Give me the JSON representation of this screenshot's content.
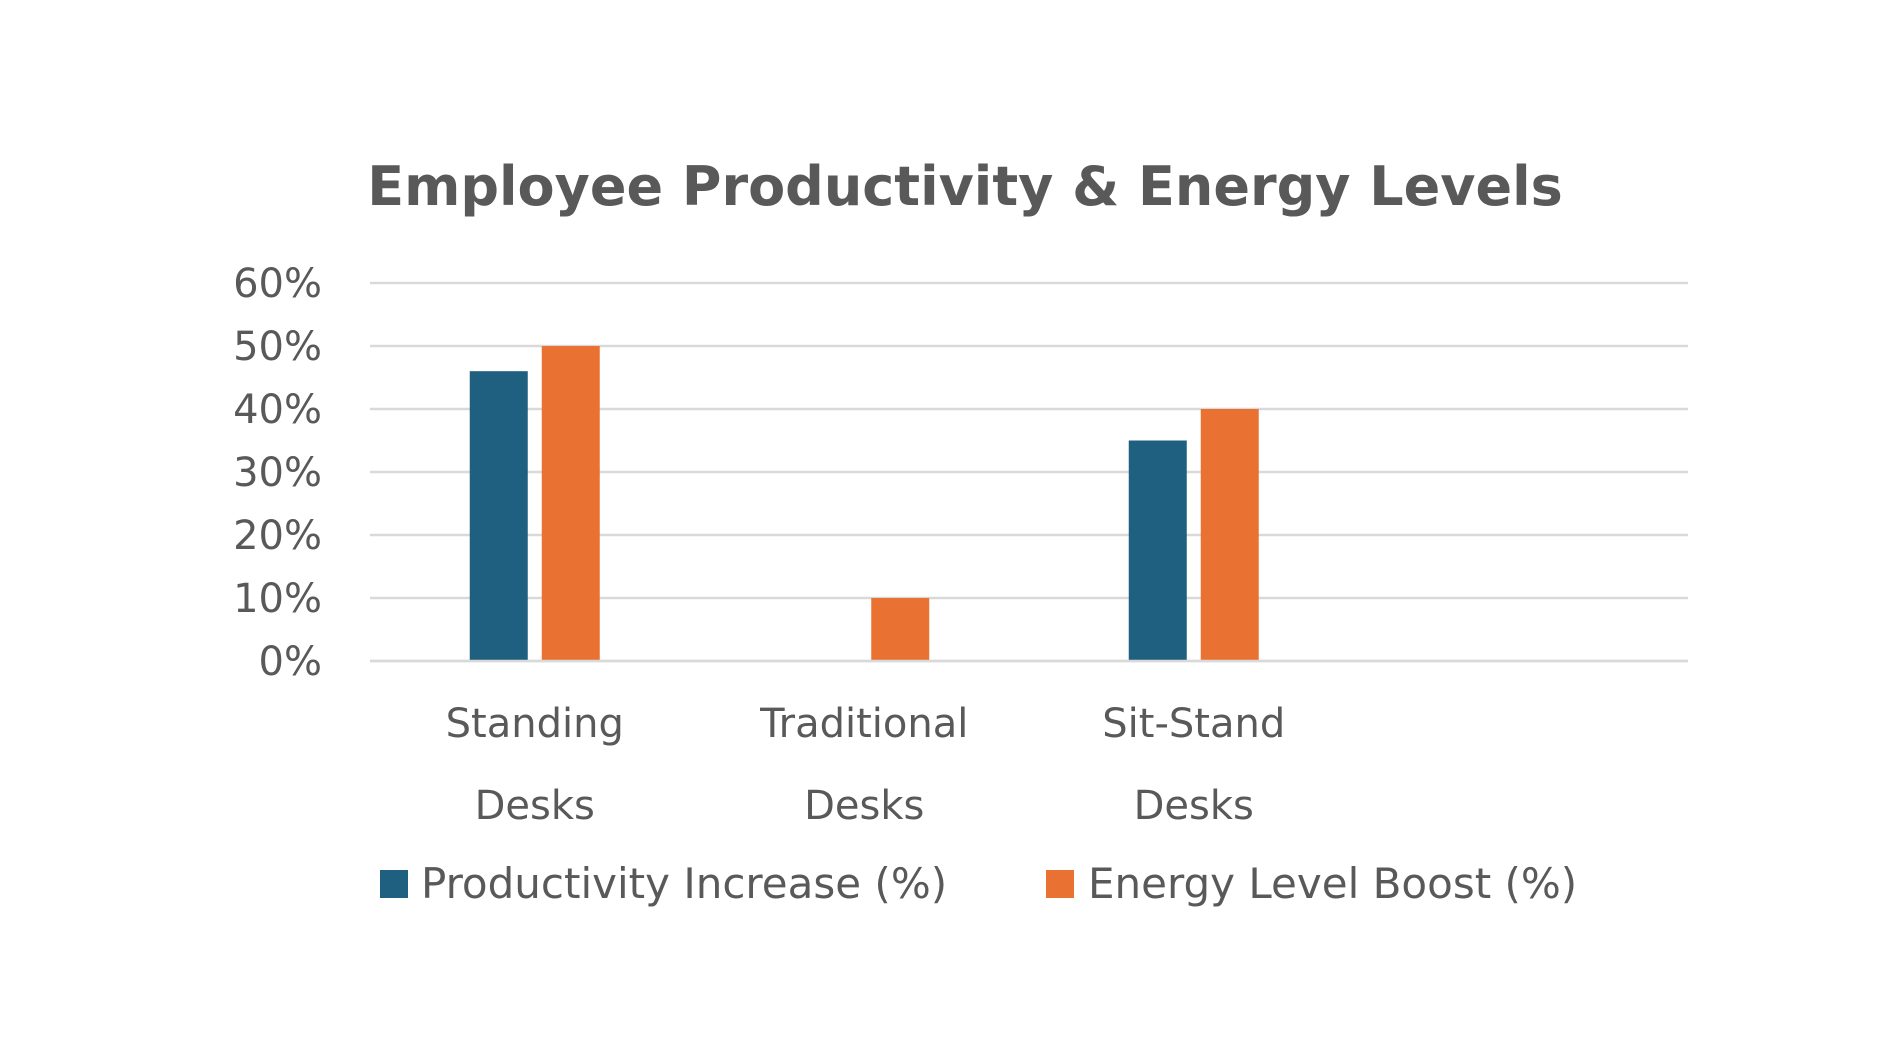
{
  "chart_data": {
    "type": "bar",
    "title": "Employee Productivity & Energy Levels",
    "xlabel": "",
    "ylabel": "",
    "categories": [
      [
        "Standing",
        "Desks"
      ],
      [
        "Traditional",
        "Desks"
      ],
      [
        "Sit-Stand",
        "Desks"
      ],
      [
        ""
      ]
    ],
    "series": [
      {
        "name": "Productivity Increase (%)",
        "color": "#1f5f80",
        "values": [
          46,
          0,
          35,
          null
        ]
      },
      {
        "name": "Energy Level Boost (%)",
        "color": "#e97132",
        "values": [
          50,
          10,
          40,
          null
        ]
      }
    ],
    "ylim": [
      0,
      60
    ],
    "yticks": [
      0,
      10,
      20,
      30,
      40,
      50,
      60
    ],
    "ytick_format": "{v}%",
    "grid": true,
    "legend_position": "bottom"
  }
}
